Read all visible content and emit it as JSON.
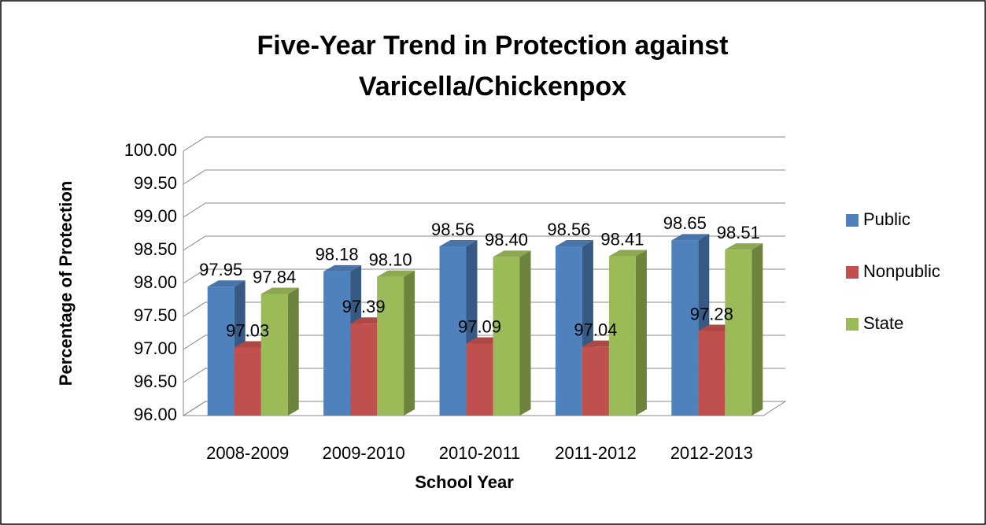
{
  "chart_data": {
    "type": "bar3d",
    "title": [
      "Five-Year Trend in Protection against",
      "Varicella/Chickenpox"
    ],
    "x_label": "School Year",
    "y_label": "Percentage of Protection",
    "categories": [
      "2008-2009",
      "2009-2010",
      "2010-2011",
      "2011-2012",
      "2012-2013"
    ],
    "series": [
      {
        "name": "Public",
        "color": "#4f81bd",
        "values": [
          97.95,
          98.18,
          98.56,
          98.56,
          98.65
        ],
        "value_labels": [
          "97.95",
          "98.18",
          "98.56",
          "98.56",
          "98.65"
        ]
      },
      {
        "name": "Nonpublic",
        "color": "#c0504d",
        "values": [
          97.03,
          97.39,
          97.09,
          97.04,
          97.28
        ],
        "value_labels": [
          "97.03",
          "97.39",
          "97.09",
          "97.04",
          "97.28"
        ]
      },
      {
        "name": "State",
        "color": "#9bbb59",
        "values": [
          97.84,
          98.1,
          98.4,
          98.41,
          98.51
        ],
        "value_labels": [
          "97.84",
          "98.10",
          "98.40",
          "98.41",
          "98.51"
        ]
      }
    ],
    "ylim": [
      96,
      100
    ],
    "yticks": [
      {
        "value": 96,
        "label": "96.00"
      },
      {
        "value": 96.5,
        "label": "96.50"
      },
      {
        "value": 97,
        "label": "97.00"
      },
      {
        "value": 97.5,
        "label": "97.50"
      },
      {
        "value": 98,
        "label": "98.00"
      },
      {
        "value": 98.5,
        "label": "98.50"
      },
      {
        "value": 99,
        "label": "99.00"
      },
      {
        "value": 99.5,
        "label": "99.50"
      },
      {
        "value": 100,
        "label": "100.00"
      }
    ],
    "grid": true,
    "legend": "right"
  }
}
